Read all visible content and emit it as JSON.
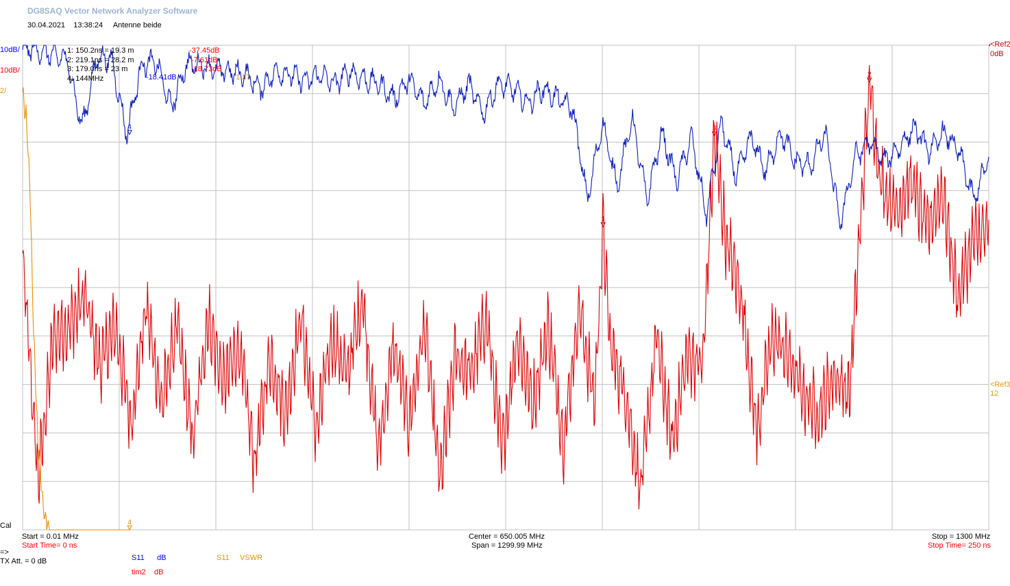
{
  "header": {
    "app_title": "DG8SAQ Vector Network Analyzer Software",
    "date": "30.04.2021",
    "time": "13:38:24",
    "description": "Antenne beide"
  },
  "left_scale": {
    "s11_div": "10dB/",
    "tim2_div": "10dB/",
    "vswr_div": "2/"
  },
  "right_scale": {
    "ref2_label": "<Ref2",
    "ref2_value": "0dB",
    "ref3_label": "<Ref3",
    "ref3_value": "12"
  },
  "markers": {
    "list": [
      "1:  150.2ns = 19.3 m",
      "2:  219.1ns = 28.2 m",
      "3:  179.0ns = 23 m",
      "4:  144MHz"
    ],
    "tim2_values": [
      "-37.45dB",
      "-7.61dB",
      "-18.73dB"
    ],
    "s11_value": "-18.41dB",
    "vswr_value": "1.27"
  },
  "marker_flags": {
    "m1": "1",
    "m2": "2",
    "m3": "3",
    "m4_s11": "4",
    "m4_vswr": "4"
  },
  "footer": {
    "cal": "Cal",
    "start_freq": "Start = 0.01 MHz",
    "start_time": "Start Time= 0 ns",
    "center": "Center = 650.005 MHz",
    "span": "Span = 1299.99 MHz",
    "stop_freq": "Stop = 1300 MHz",
    "stop_time": "Stop Time= 250 ns",
    "prompt": "=>",
    "tx_att": "TX Att.   = 0 dB"
  },
  "traces": [
    {
      "name": "S11",
      "unit": "dB",
      "color": "#0000c8"
    },
    {
      "name": "tim2",
      "unit": "dB",
      "color": "#e00000"
    },
    {
      "name": "S11",
      "unit": "VSWR",
      "color": "#e68a00"
    }
  ],
  "colors": {
    "grid": "#c0c0c0",
    "s11": "#0a1ebe",
    "tim2": "#dc0000",
    "vswr": "#ee8a00"
  },
  "chart_data": {
    "type": "line",
    "x_freq": {
      "start_mhz": 0.01,
      "stop_mhz": 1300,
      "center_mhz": 650.005,
      "span_mhz": 1299.99
    },
    "x_time": {
      "start_ns": 0,
      "stop_ns": 250
    },
    "grid": true,
    "divisions": {
      "x": 10,
      "y": 10
    },
    "series": [
      {
        "name": "S11",
        "unit": "dB",
        "x_axis": "MHz",
        "ref_db": 0,
        "scale_db_per_div": 10,
        "x": [
          0,
          20,
          40,
          60,
          80,
          100,
          120,
          140,
          160,
          180,
          200,
          220,
          240,
          260,
          280,
          300,
          320,
          340,
          360,
          380,
          400,
          420,
          440,
          460,
          480,
          500,
          520,
          540,
          560,
          580,
          600,
          620,
          640,
          660,
          680,
          700,
          720,
          740,
          760,
          780,
          800,
          820,
          840,
          860,
          880,
          900,
          920,
          940,
          960,
          980,
          1000,
          1020,
          1040,
          1060,
          1080,
          1100,
          1120,
          1140,
          1160,
          1180,
          1200,
          1220,
          1240,
          1260,
          1280,
          1300
        ],
        "values": [
          -0.5,
          -1,
          -2,
          -3,
          -17,
          -2.5,
          -3,
          -18.4,
          -4,
          -3.5,
          -13,
          -4,
          -4,
          -5,
          -5.5,
          -6,
          -9,
          -5.5,
          -6,
          -7.5,
          -6,
          -8,
          -5.5,
          -7,
          -8,
          -11,
          -7,
          -12,
          -7,
          -13,
          -8,
          -14,
          -8,
          -9,
          -12,
          -9,
          -11,
          -13,
          -32,
          -16,
          -29,
          -15,
          -32,
          -18,
          -28,
          -19,
          -35,
          -16,
          -27,
          -19,
          -26,
          -18,
          -24,
          -25,
          -18,
          -37,
          -23,
          -20,
          -24,
          -21,
          -17,
          -22,
          -18,
          -22,
          -32,
          -23
        ]
      },
      {
        "name": "tim2",
        "unit": "dB",
        "x_axis": "ns",
        "ref_db": 0,
        "scale_db_per_div": 10,
        "x": [
          0,
          4,
          8,
          12,
          16,
          20,
          24,
          28,
          32,
          36,
          40,
          44,
          48,
          52,
          56,
          60,
          64,
          68,
          72,
          76,
          80,
          84,
          88,
          92,
          96,
          100,
          104,
          108,
          112,
          116,
          120,
          124,
          128,
          132,
          136,
          140,
          144,
          148,
          150.2,
          152,
          156,
          160,
          164,
          168,
          172,
          176,
          179,
          182,
          186,
          190,
          194,
          198,
          202,
          206,
          210,
          214,
          219.1,
          222,
          226,
          230,
          234,
          238,
          242,
          246,
          250
        ],
        "values": [
          -44,
          -90,
          -60,
          -58,
          -52,
          -66,
          -58,
          -78,
          -54,
          -74,
          -58,
          -82,
          -56,
          -70,
          -62,
          -86,
          -64,
          -76,
          -56,
          -80,
          -60,
          -68,
          -52,
          -84,
          -62,
          -78,
          -58,
          -90,
          -64,
          -68,
          -56,
          -84,
          -60,
          -74,
          -58,
          -82,
          -54,
          -74,
          -37.4,
          -62,
          -72,
          -92,
          -60,
          -82,
          -64,
          -66,
          -18.7,
          -40,
          -52,
          -80,
          -60,
          -64,
          -72,
          -76,
          -68,
          -72,
          -7.6,
          -28,
          -34,
          -28,
          -38,
          -30,
          -52,
          -40,
          -38
        ]
      },
      {
        "name": "S11",
        "unit": "VSWR",
        "x_axis": "MHz",
        "ref_value": 12,
        "scale_per_div": 2,
        "x": [
          0,
          5,
          10,
          15,
          20,
          25,
          30,
          40,
          50,
          60,
          70,
          80,
          90,
          100,
          110,
          120,
          130,
          144
        ],
        "values": [
          24,
          23,
          20,
          14,
          10,
          8,
          6.5,
          5.5,
          4,
          3.4,
          2.8,
          2.2,
          1.6,
          1.4,
          1,
          0.8,
          0.6,
          1.27
        ]
      }
    ]
  }
}
